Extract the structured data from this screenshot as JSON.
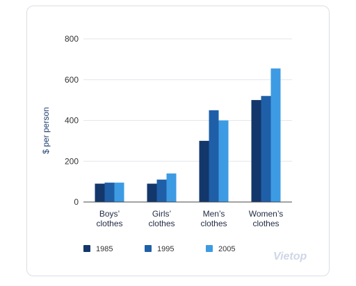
{
  "chart_data": {
    "type": "bar",
    "title": "",
    "xlabel": "",
    "ylabel": "$ per person",
    "ylim": [
      0,
      800
    ],
    "yticks": [
      0,
      200,
      400,
      600,
      800
    ],
    "categories": [
      [
        "Boys’",
        "clothes"
      ],
      [
        "Girls’",
        "clothes"
      ],
      [
        "Men’s",
        "clothes"
      ],
      [
        "Women’s",
        "clothes"
      ]
    ],
    "series": [
      {
        "name": "1985",
        "color": "#13376b",
        "values": [
          90,
          90,
          300,
          500
        ]
      },
      {
        "name": "1995",
        "color": "#1f5fa8",
        "values": [
          95,
          110,
          450,
          520
        ]
      },
      {
        "name": "2005",
        "color": "#3d9be3",
        "values": [
          95,
          140,
          400,
          655
        ]
      }
    ],
    "grid": true,
    "legend_position": "bottom"
  },
  "brand": {
    "logo_text": "Vietop"
  }
}
